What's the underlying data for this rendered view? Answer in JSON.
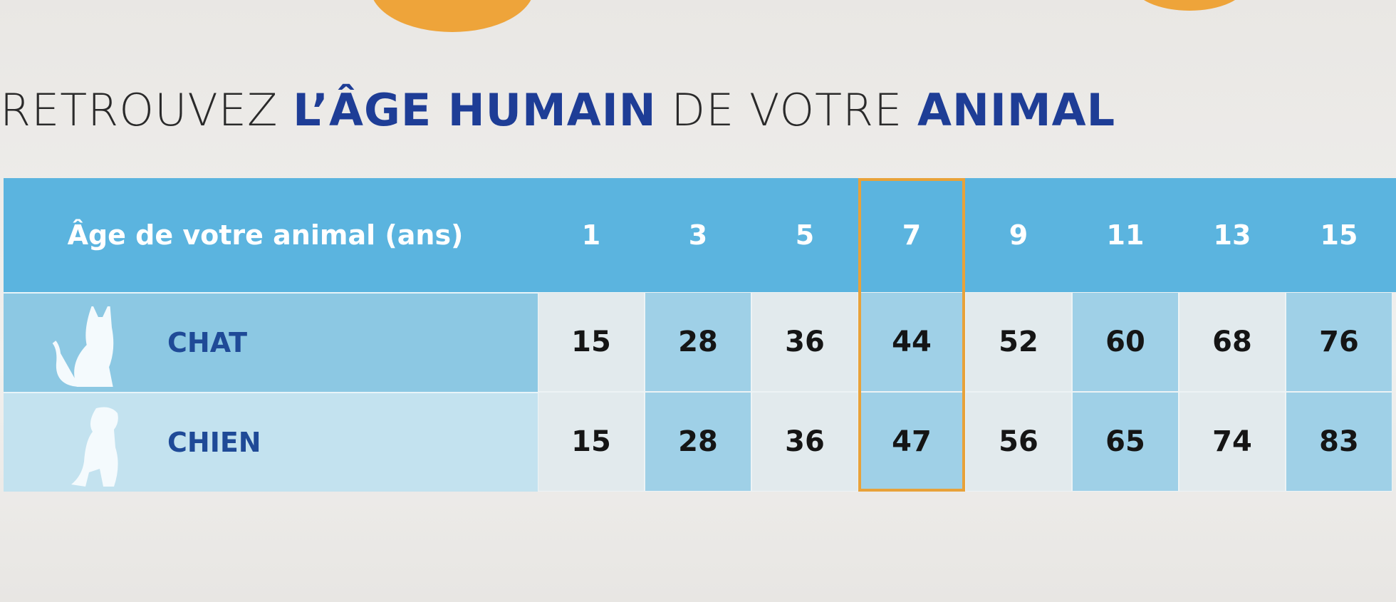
{
  "title": {
    "part1": "RETROUVEZ",
    "part2": "L’ÂGE HUMAIN",
    "part3": "DE VOTRE",
    "part4": "ANIMAL"
  },
  "table": {
    "header_label": "Âge de votre animal (ans)",
    "columns": [
      1,
      3,
      5,
      7,
      9,
      11,
      13,
      15
    ],
    "rows": [
      {
        "label": "CHAT",
        "values": [
          15,
          28,
          36,
          44,
          52,
          60,
          68,
          76
        ]
      },
      {
        "label": "CHIEN",
        "values": [
          15,
          28,
          36,
          47,
          56,
          65,
          74,
          83
        ]
      }
    ]
  }
}
